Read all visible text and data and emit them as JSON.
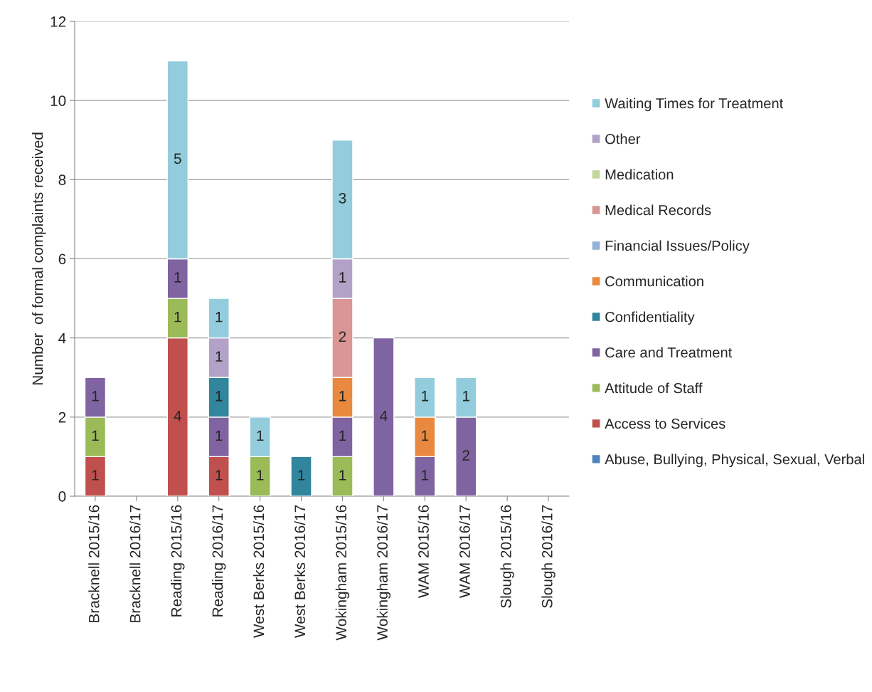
{
  "chart_data": {
    "type": "bar",
    "stacked": true,
    "ylabel": "Number  of formal complaints received",
    "categories": [
      "Bracknell 2015/16",
      "Bracknell 2016/17",
      "Reading 2015/16",
      "Reading 2016/17",
      "West Berks 2015/16",
      "West Berks 2016/17",
      "Wokingham 2015/16",
      "Wokingham 2016/17",
      "WAM 2015/16",
      "WAM 2016/17",
      "Slough 2015/16",
      "Slough 2016/17"
    ],
    "series": [
      {
        "name": "Abuse, Bullying, Physical, Sexual, Verbal",
        "color": "#4f81bd",
        "values": [
          null,
          null,
          null,
          null,
          null,
          null,
          null,
          null,
          null,
          null,
          null,
          null
        ]
      },
      {
        "name": "Access to Services",
        "color": "#c0504d",
        "values": [
          1,
          null,
          4,
          1,
          null,
          null,
          null,
          null,
          null,
          null,
          null,
          null
        ]
      },
      {
        "name": "Attitude of Staff",
        "color": "#9bbb59",
        "values": [
          1,
          null,
          1,
          null,
          1,
          null,
          1,
          null,
          null,
          null,
          null,
          null
        ]
      },
      {
        "name": "Care and Treatment",
        "color": "#8064a2",
        "values": [
          1,
          null,
          1,
          1,
          null,
          null,
          1,
          4,
          1,
          2,
          null,
          null
        ]
      },
      {
        "name": "Confidentiality",
        "color": "#31859c",
        "values": [
          null,
          null,
          null,
          1,
          null,
          1,
          null,
          null,
          null,
          null,
          null,
          null
        ]
      },
      {
        "name": "Communication",
        "color": "#e8893f",
        "values": [
          null,
          null,
          null,
          null,
          null,
          null,
          1,
          null,
          1,
          null,
          null,
          null
        ]
      },
      {
        "name": "Financial Issues/Policy",
        "color": "#95b3d7",
        "values": [
          null,
          null,
          null,
          null,
          null,
          null,
          null,
          null,
          null,
          null,
          null,
          null
        ]
      },
      {
        "name": "Medical Records",
        "color": "#d99694",
        "values": [
          null,
          null,
          null,
          null,
          null,
          null,
          2,
          null,
          null,
          null,
          null,
          null
        ]
      },
      {
        "name": "Medication",
        "color": "#c3d69b",
        "values": [
          null,
          null,
          null,
          null,
          null,
          null,
          null,
          null,
          null,
          null,
          null,
          null
        ]
      },
      {
        "name": "Other",
        "color": "#b3a2c7",
        "values": [
          null,
          null,
          null,
          1,
          null,
          null,
          1,
          null,
          null,
          null,
          null,
          null
        ]
      },
      {
        "name": "Waiting Times for Treatment",
        "color": "#93cddd",
        "values": [
          null,
          null,
          5,
          1,
          1,
          null,
          3,
          null,
          1,
          1,
          null,
          null
        ]
      }
    ],
    "ylim": [
      0,
      12
    ],
    "yticks": [
      0,
      2,
      4,
      6,
      8,
      10,
      12
    ],
    "grid": "y",
    "legend": "right",
    "data_labels": true
  }
}
